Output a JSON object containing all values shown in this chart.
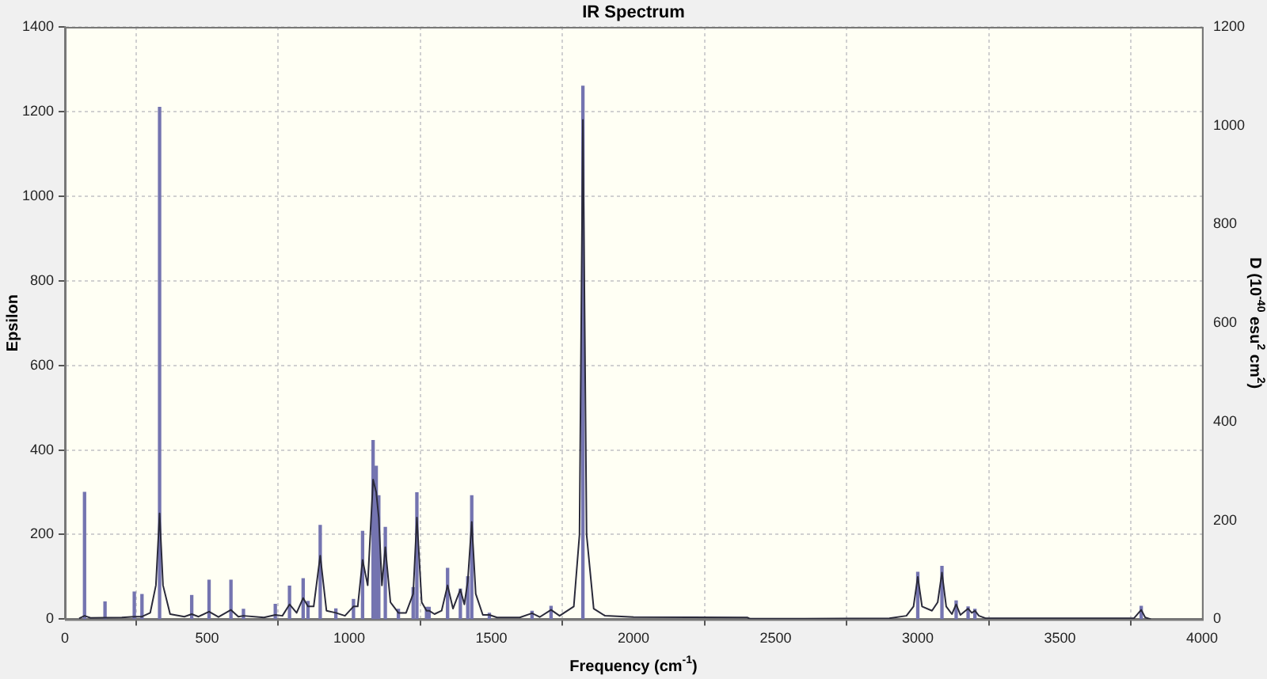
{
  "chart_data": {
    "type": "line",
    "title": "IR Spectrum",
    "xlabel": "Frequency (cm$^{-1}$)",
    "ylabel": "Epsilon",
    "y2label": "D (10$^{-40}$ esu$^{2}$ cm$^{2}$)",
    "xlim": [
      0,
      4000
    ],
    "xticks": [
      0,
      500,
      1000,
      1500,
      2000,
      2500,
      3000,
      3500,
      4000
    ],
    "ylim": [
      0,
      1400
    ],
    "yticks": [
      0,
      200,
      400,
      600,
      800,
      1000,
      1200,
      1400
    ],
    "y2lim": [
      0,
      1200
    ],
    "y2ticks": [
      0,
      200,
      400,
      600,
      800,
      1000,
      1200
    ],
    "grid": true,
    "legend": false,
    "marker": "none",
    "line_style": "solid",
    "series": [
      {
        "type": "bar",
        "axis": "y2",
        "color": "#7474b0",
        "x": [
          69,
          141,
          244,
          271,
          333,
          446,
          507,
          584,
          628,
          740,
          790,
          838,
          855,
          898,
          953,
          1015,
          1047,
          1084,
          1095,
          1104,
          1127,
          1173,
          1225,
          1238,
          1272,
          1281,
          1346,
          1391,
          1417,
          1431,
          1493,
          1643,
          1710,
          1822,
          3000,
          3085,
          3135,
          3177,
          3201,
          3786
        ],
        "values": [
          257,
          35,
          55,
          50,
          1037,
          48,
          79,
          79,
          20,
          30,
          67,
          82,
          36,
          190,
          21,
          40,
          178,
          362,
          310,
          250,
          186,
          20,
          64,
          256,
          24,
          24,
          103,
          61,
          86,
          250,
          12,
          16,
          26,
          1080,
          95,
          107,
          37,
          25,
          20,
          26
        ]
      },
      {
        "axis": "y",
        "color": "#2a2a3a",
        "x": [
          50,
          69,
          90,
          200,
          244,
          271,
          300,
          320,
          333,
          345,
          370,
          420,
          446,
          470,
          507,
          540,
          584,
          610,
          628,
          700,
          740,
          765,
          790,
          815,
          838,
          855,
          875,
          898,
          920,
          953,
          985,
          1015,
          1030,
          1047,
          1065,
          1084,
          1095,
          1104,
          1115,
          1127,
          1145,
          1173,
          1200,
          1225,
          1238,
          1255,
          1272,
          1281,
          1300,
          1325,
          1346,
          1365,
          1391,
          1405,
          1417,
          1431,
          1445,
          1470,
          1493,
          1520,
          1600,
          1643,
          1670,
          1710,
          1740,
          1790,
          1810,
          1822,
          1835,
          1860,
          1900,
          2000,
          2400,
          2410,
          2900,
          2960,
          2985,
          3000,
          3015,
          3050,
          3070,
          3085,
          3100,
          3120,
          3135,
          3150,
          3177,
          3190,
          3201,
          3215,
          3240,
          3760,
          3786,
          3800,
          3820
        ],
        "values": [
          2,
          8,
          3,
          4,
          6,
          6,
          15,
          80,
          250,
          80,
          12,
          6,
          12,
          6,
          18,
          5,
          22,
          6,
          8,
          4,
          10,
          8,
          35,
          15,
          50,
          30,
          30,
          150,
          20,
          15,
          8,
          30,
          30,
          140,
          80,
          330,
          300,
          240,
          80,
          170,
          40,
          15,
          15,
          60,
          240,
          40,
          20,
          20,
          12,
          20,
          80,
          25,
          70,
          35,
          90,
          230,
          60,
          10,
          10,
          4,
          4,
          14,
          5,
          22,
          8,
          30,
          200,
          1180,
          200,
          25,
          8,
          5,
          4,
          1,
          2,
          8,
          30,
          100,
          30,
          20,
          40,
          110,
          30,
          12,
          35,
          10,
          25,
          15,
          20,
          8,
          2,
          2,
          22,
          4,
          0
        ]
      }
    ]
  }
}
